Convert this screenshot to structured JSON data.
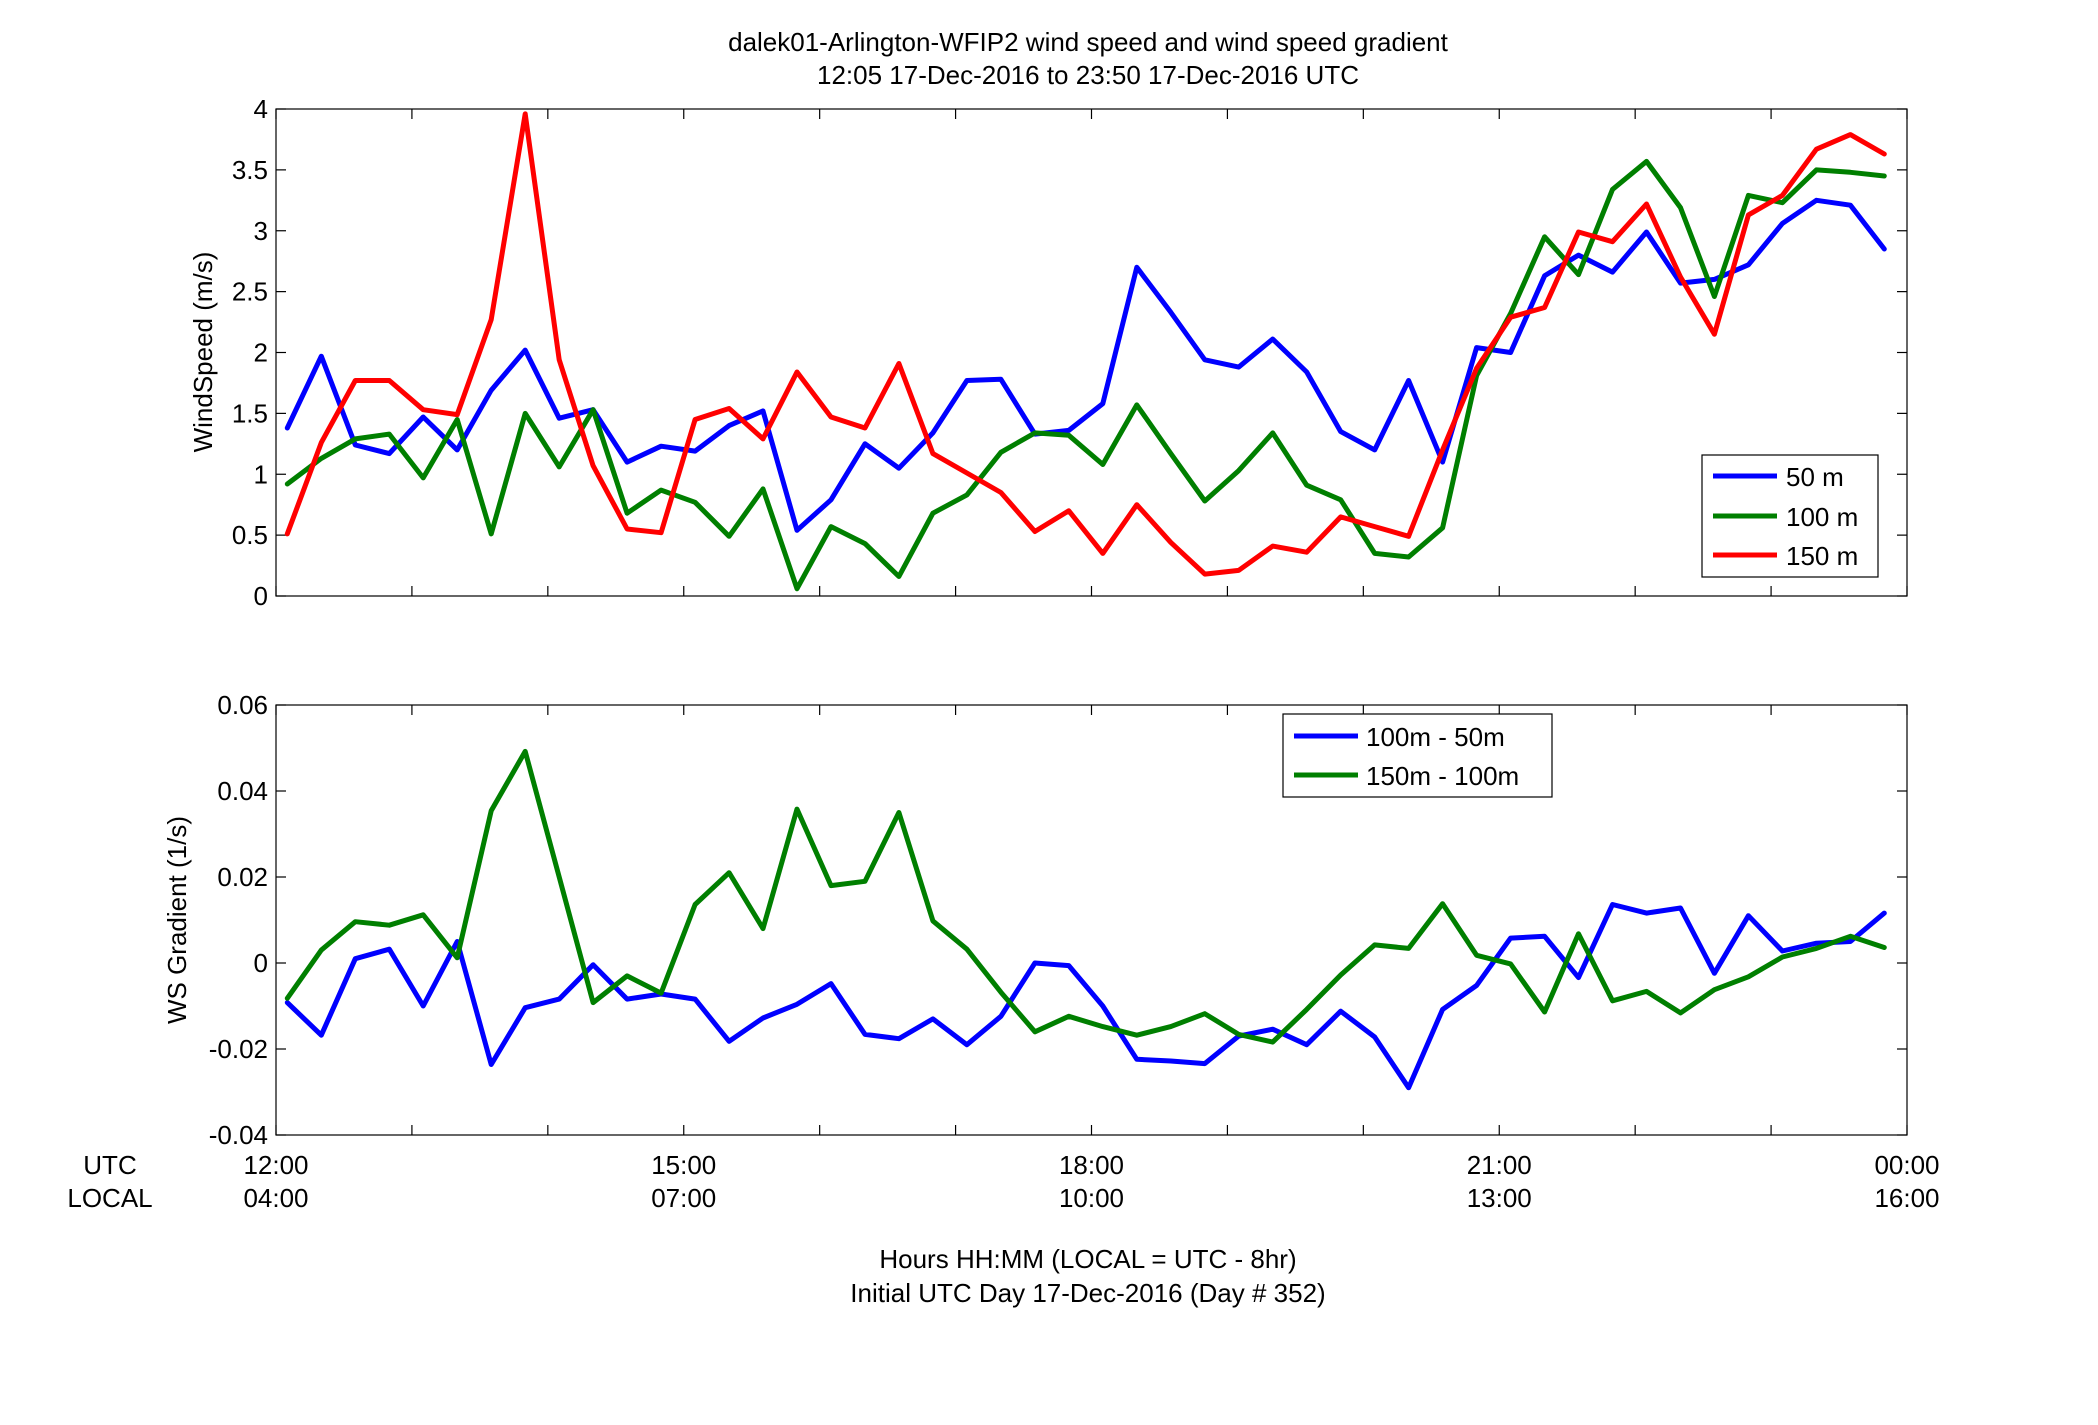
{
  "title_line1": "dalek01-Arlington-WFIP2  wind speed and wind speed gradient",
  "title_line2": "12:05 17-Dec-2016 to 23:50 17-Dec-2016  UTC",
  "row_labels": {
    "utc": "UTC",
    "local": "LOCAL"
  },
  "xlabel_line1": "Hours HH:MM  (LOCAL = UTC - 8hr)",
  "xlabel_line2": "Initial UTC Day 17-Dec-2016 (Day # 352)",
  "x_ticks": [
    {
      "hour": 12,
      "utc": "12:00",
      "local": "04:00"
    },
    {
      "hour": 15,
      "utc": "15:00",
      "local": "07:00"
    },
    {
      "hour": 18,
      "utc": "18:00",
      "local": "10:00"
    },
    {
      "hour": 21,
      "utc": "21:00",
      "local": "13:00"
    },
    {
      "hour": 24,
      "utc": "00:00",
      "local": "16:00"
    }
  ],
  "colors": {
    "blue": "#0000ff",
    "green": "#007f00",
    "red": "#ff0000"
  },
  "chart_data": [
    {
      "type": "line",
      "ylabel": "WindSpeed (m/s)",
      "xlim": [
        12,
        24
      ],
      "ylim": [
        0,
        4
      ],
      "yticks": [
        0,
        0.5,
        1,
        1.5,
        2,
        2.5,
        3,
        3.5,
        4
      ],
      "legend_position": "lower-right",
      "x_start": 12.0833,
      "x_step": 0.25,
      "series": [
        {
          "name": "50 m",
          "color": "#0000ff",
          "values": [
            1.38,
            1.97,
            1.24,
            1.17,
            1.47,
            1.2,
            1.69,
            2.02,
            1.46,
            1.53,
            1.1,
            1.23,
            1.19,
            1.4,
            1.52,
            0.54,
            0.79,
            1.25,
            1.05,
            1.34,
            1.77,
            1.78,
            1.33,
            1.36,
            1.58,
            2.7,
            2.33,
            1.94,
            1.88,
            2.11,
            1.84,
            1.35,
            1.2,
            1.77,
            1.1,
            2.04,
            2.0,
            2.63,
            2.8,
            2.66,
            2.99,
            2.57,
            2.6,
            2.72,
            3.06,
            3.25,
            3.21,
            2.85
          ]
        },
        {
          "name": "100 m",
          "color": "#007f00",
          "values": [
            0.92,
            1.13,
            1.29,
            1.33,
            0.97,
            1.45,
            0.51,
            1.5,
            1.06,
            1.53,
            0.68,
            0.87,
            0.77,
            0.49,
            0.88,
            0.06,
            0.57,
            0.43,
            0.16,
            0.68,
            0.83,
            1.18,
            1.34,
            1.32,
            1.08,
            1.57,
            1.17,
            0.78,
            1.03,
            1.34,
            0.91,
            0.79,
            0.35,
            0.32,
            0.56,
            1.81,
            2.32,
            2.95,
            2.64,
            3.34,
            3.57,
            3.19,
            2.46,
            3.29,
            3.23,
            3.5,
            3.48,
            3.45
          ]
        },
        {
          "name": "150 m",
          "color": "#ff0000",
          "values": [
            0.51,
            1.26,
            1.77,
            1.77,
            1.53,
            1.49,
            2.27,
            3.96,
            1.94,
            1.07,
            0.55,
            0.52,
            1.45,
            1.54,
            1.29,
            1.84,
            1.47,
            1.38,
            1.91,
            1.17,
            1.01,
            0.85,
            0.53,
            0.7,
            0.35,
            0.75,
            0.44,
            0.18,
            0.21,
            0.41,
            0.36,
            0.65,
            0.57,
            0.49,
            1.2,
            1.87,
            2.29,
            2.37,
            2.99,
            2.91,
            3.22,
            2.62,
            2.15,
            3.13,
            3.29,
            3.67,
            3.79,
            3.63
          ]
        }
      ]
    },
    {
      "type": "line",
      "ylabel": "WS Gradient (1/s)",
      "xlim": [
        12,
        24
      ],
      "ylim": [
        -0.04,
        0.06
      ],
      "yticks": [
        -0.04,
        -0.02,
        0,
        0.02,
        0.04,
        0.06
      ],
      "legend_position": "top-right",
      "x_start": 12.0833,
      "x_step": 0.25,
      "series": [
        {
          "name": "100m - 50m",
          "color": "#0000ff",
          "values": [
            -0.0092,
            -0.0168,
            0.001,
            0.0032,
            -0.01,
            0.005,
            -0.0236,
            -0.0104,
            -0.0084,
            -0.0004,
            -0.0084,
            -0.0072,
            -0.0084,
            -0.0182,
            -0.0128,
            -0.0096,
            -0.0048,
            -0.0166,
            -0.0176,
            -0.013,
            -0.019,
            -0.0124,
            0.0,
            -0.0006,
            -0.01,
            -0.0224,
            -0.0228,
            -0.0234,
            -0.017,
            -0.0154,
            -0.019,
            -0.0112,
            -0.0172,
            -0.029,
            -0.0108,
            -0.0052,
            0.0058,
            0.0062,
            -0.0034,
            0.0136,
            0.0116,
            0.0128,
            -0.0024,
            0.011,
            0.0028,
            0.0046,
            0.005,
            0.0116
          ]
        },
        {
          "name": "150m - 100m",
          "color": "#007f00",
          "values": [
            -0.0082,
            0.003,
            0.0096,
            0.0088,
            0.0112,
            0.0012,
            0.0354,
            0.0492,
            0.02,
            -0.0092,
            -0.003,
            -0.007,
            0.0136,
            0.021,
            0.008,
            0.0358,
            0.018,
            0.019,
            0.035,
            0.0098,
            0.0032,
            -0.0068,
            -0.016,
            -0.0124,
            -0.0148,
            -0.0168,
            -0.0148,
            -0.0118,
            -0.0166,
            -0.0184,
            -0.0108,
            -0.0028,
            0.0042,
            0.0034,
            0.0138,
            0.0018,
            -0.0002,
            -0.0114,
            0.0068,
            -0.0088,
            -0.0066,
            -0.0116,
            -0.0062,
            -0.0032,
            0.0014,
            0.0034,
            0.0062,
            0.0036
          ]
        }
      ]
    }
  ]
}
